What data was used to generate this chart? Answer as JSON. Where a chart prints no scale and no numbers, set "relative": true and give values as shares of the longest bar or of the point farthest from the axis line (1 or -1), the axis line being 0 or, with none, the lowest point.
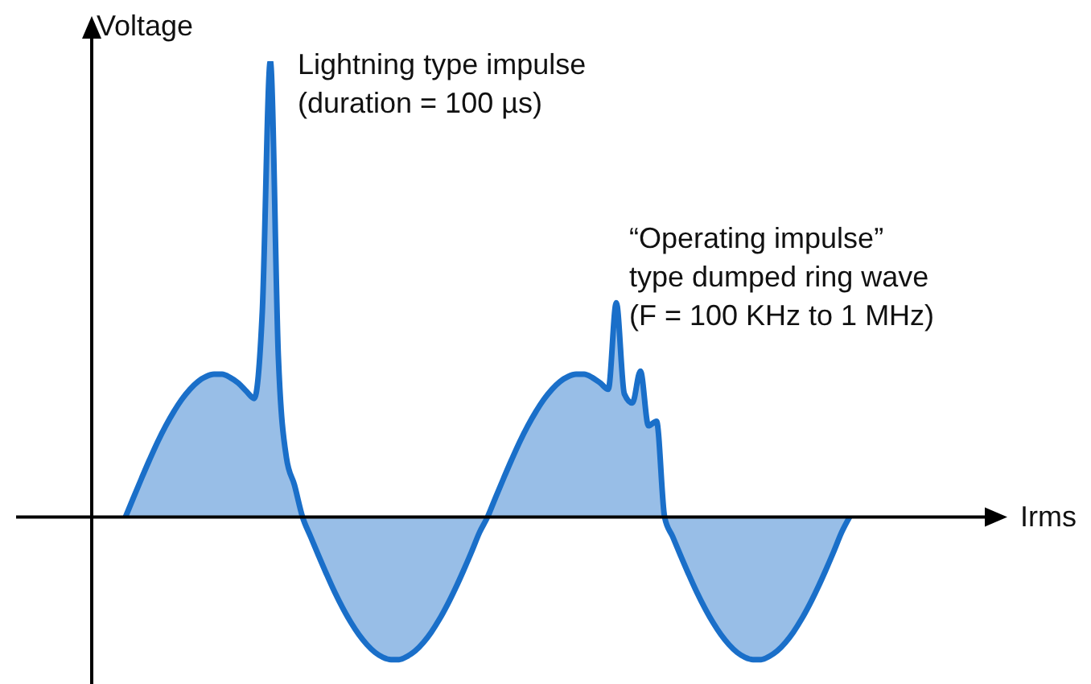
{
  "chart_data": {
    "type": "area",
    "relative": true,
    "xlabel": "Irms",
    "ylabel": "Voltage",
    "annotations": [
      "Lightning type impulse\n(duration = 100 µs)",
      "“Operating impulse”\ntype dumped ring wave\n(F = 100 KHz to 1 MHz)"
    ],
    "categories": [
      null,
      null,
      null,
      null,
      null,
      null,
      null,
      null,
      null,
      null,
      null,
      null,
      null,
      null,
      null,
      null,
      null,
      null,
      null,
      null,
      null,
      null,
      null,
      null,
      null,
      null,
      null,
      null,
      null,
      null,
      null,
      null,
      null,
      null,
      null,
      null,
      null,
      null,
      null,
      null,
      null,
      null,
      null,
      null,
      null,
      null,
      null,
      null,
      null,
      null,
      null,
      null,
      null,
      null,
      null,
      null,
      null,
      null,
      null,
      null,
      null,
      null,
      null,
      null,
      null,
      null,
      null,
      null,
      null,
      null,
      null,
      null,
      null,
      null,
      null,
      null,
      null,
      null,
      null,
      null,
      null,
      null,
      null,
      null,
      null,
      null,
      null,
      null,
      null,
      null,
      null,
      null,
      null,
      null,
      null,
      null,
      null,
      null,
      null,
      null,
      null,
      null,
      null,
      null,
      null,
      null,
      null,
      null,
      null,
      null,
      null,
      null,
      null,
      null
    ],
    "series": [
      {
        "color": "#1a6fc9",
        "values": [
          null,
          null,
          null,
          null,
          null,
          0,
          0.043,
          0.085,
          0.126,
          0.165,
          0.2,
          0.231,
          0.258,
          0.28,
          0.297,
          0.308,
          0.313,
          0.313,
          0.306,
          0.294,
          0.276,
          0.26,
          0.45,
          1,
          0.35,
          0.13,
          0.07,
          0,
          -0.043,
          -0.085,
          -0.126,
          -0.165,
          -0.2,
          -0.231,
          -0.258,
          -0.28,
          -0.297,
          -0.308,
          -0.313,
          -0.313,
          -0.306,
          -0.294,
          -0.276,
          -0.253,
          -0.225,
          -0.193,
          -0.157,
          -0.118,
          -0.077,
          -0.034,
          0,
          0.043,
          0.085,
          0.126,
          0.165,
          0.2,
          0.231,
          0.258,
          0.28,
          0.297,
          0.308,
          0.313,
          0.313,
          0.306,
          0.294,
          0.28,
          0.47,
          0.27,
          0.25,
          0.32,
          0.2,
          0.21,
          0,
          -0.043,
          -0.085,
          -0.126,
          -0.165,
          -0.2,
          -0.231,
          -0.258,
          -0.28,
          -0.297,
          -0.308,
          -0.313,
          -0.313,
          -0.306,
          -0.294,
          -0.276,
          -0.253,
          -0.225,
          -0.193,
          -0.157,
          -0.118,
          -0.077,
          -0.034,
          0,
          null,
          null,
          null,
          null,
          null,
          null,
          null,
          null,
          null,
          null,
          null,
          null,
          null,
          null,
          null,
          null,
          null,
          null
        ]
      }
    ]
  }
}
